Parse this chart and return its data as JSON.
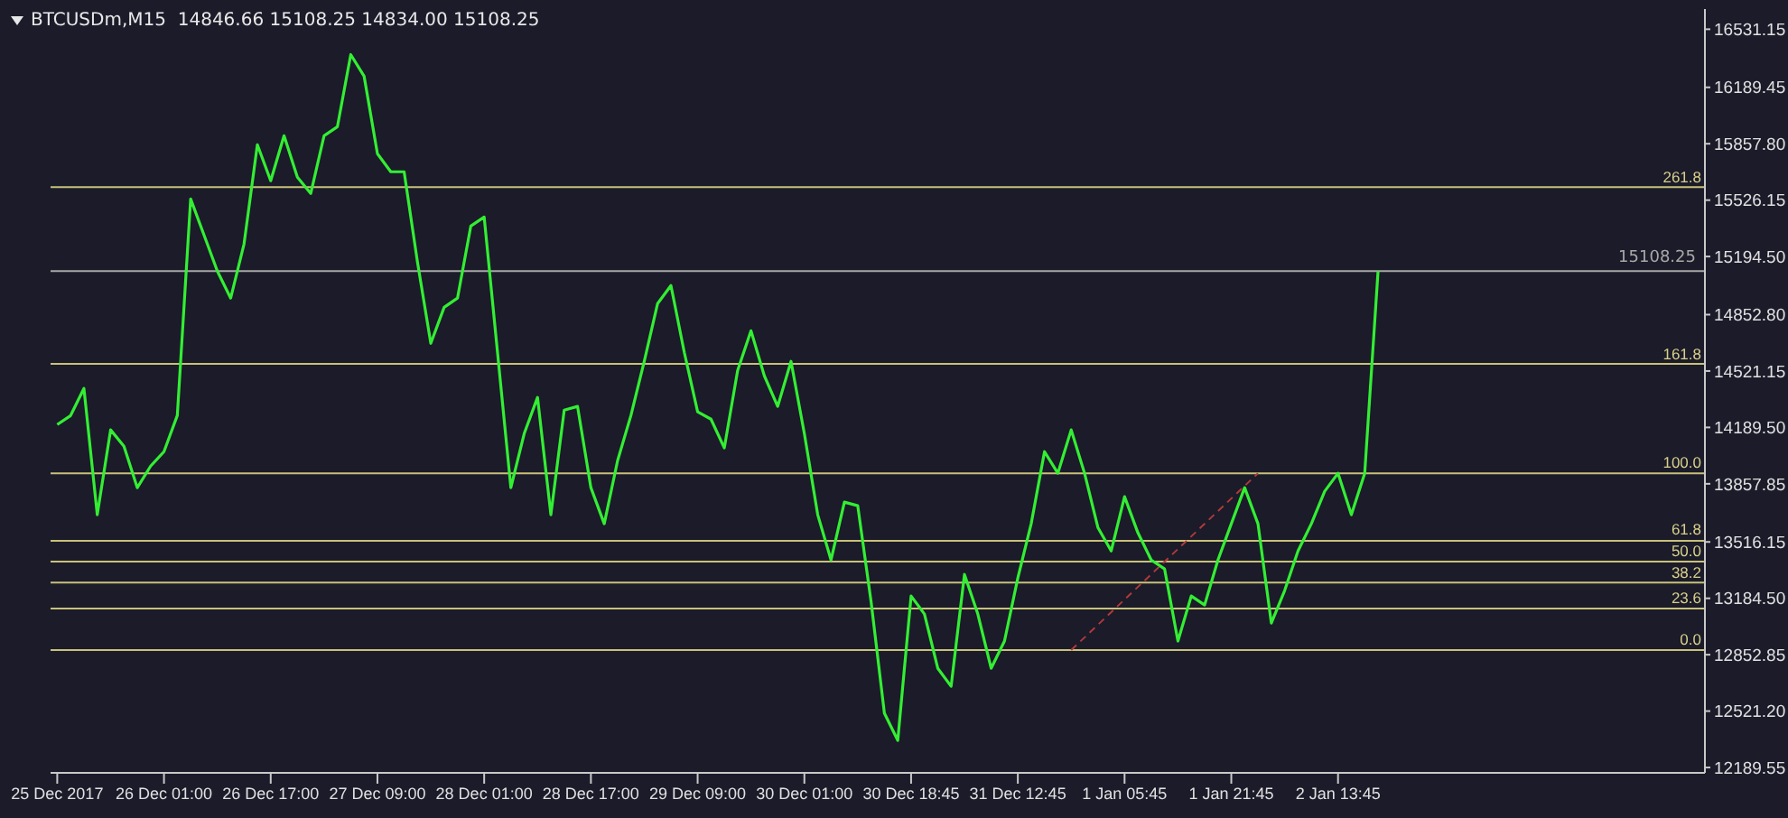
{
  "chart_data": {
    "type": "line",
    "title": "BTCUSDm,M15  14846.66 15108.25 14834.00 15108.25",
    "categories": [
      "25 Dec 2017",
      null,
      null,
      null,
      null,
      null,
      null,
      null,
      "26 Dec 01:00",
      null,
      null,
      null,
      null,
      null,
      null,
      null,
      "26 Dec 17:00",
      null,
      null,
      null,
      null,
      null,
      null,
      null,
      "27 Dec 09:00",
      null,
      null,
      null,
      null,
      null,
      null,
      null,
      "28 Dec 01:00",
      null,
      null,
      null,
      null,
      null,
      null,
      null,
      "28 Dec 17:00",
      null,
      null,
      null,
      null,
      null,
      null,
      null,
      "29 Dec 09:00",
      null,
      null,
      null,
      null,
      null,
      null,
      null,
      "30 Dec 01:00",
      null,
      null,
      null,
      null,
      null,
      null,
      null,
      "30 Dec 18:45",
      null,
      null,
      null,
      null,
      null,
      null,
      null,
      "31 Dec 12:45",
      null,
      null,
      null,
      null,
      null,
      null,
      null,
      "1 Jan 05:45",
      null,
      null,
      null,
      null,
      null,
      null,
      null,
      "1 Jan 21:45",
      null,
      null,
      null,
      null,
      null,
      null,
      null,
      "2 Jan 13:45",
      null,
      null,
      null,
      null,
      null,
      null,
      null,
      null,
      null,
      null,
      null,
      null,
      null,
      null,
      null,
      null,
      null,
      null,
      null,
      null,
      null,
      null,
      null,
      null,
      null,
      null,
      null
    ],
    "series": [
      {
        "color": "#33ee33",
        "values": [
          14206,
          14259,
          14419,
          13676,
          14175,
          14079,
          13835,
          13962,
          14047,
          14260,
          15533,
          15321,
          15109,
          14950,
          15268,
          15852,
          15640,
          15905,
          15661,
          15565,
          15905,
          15958,
          16382,
          16255,
          15799,
          15693,
          15693,
          15162,
          14684,
          14896,
          14950,
          15374,
          15427,
          14631,
          13835,
          14153,
          14366,
          13676,
          14291,
          14313,
          13835,
          13623,
          13994,
          14260,
          14578,
          14918,
          15024,
          14631,
          14281,
          14238,
          14069,
          14525,
          14758,
          14493,
          14313,
          14578,
          14153,
          13676,
          13410,
          13750,
          13729,
          13166,
          12508,
          12349,
          13198,
          13092,
          12773,
          12667,
          13325,
          13092,
          12773,
          12933,
          13304,
          13623,
          14047,
          13920,
          14175,
          13920,
          13601,
          13463,
          13782,
          13570,
          13410,
          13357,
          12933,
          13198,
          13145,
          13410,
          13623,
          13835,
          13623,
          13039,
          13230,
          13463,
          13623,
          13814,
          13920,
          13676,
          13920,
          15108.25,
          null,
          null,
          null,
          null,
          null,
          null,
          null,
          null,
          null,
          null,
          null,
          null,
          null,
          null,
          null,
          null,
          null,
          null,
          null,
          null,
          null,
          null,
          null,
          null
        ]
      },
      {
        "type": "line",
        "color": "#b03a3a",
        "line_style": "dashed",
        "values": [
          null,
          null,
          null,
          null,
          null,
          null,
          null,
          null,
          null,
          null,
          null,
          null,
          null,
          null,
          null,
          null,
          null,
          null,
          null,
          null,
          null,
          null,
          null,
          null,
          null,
          null,
          null,
          null,
          null,
          null,
          null,
          null,
          null,
          null,
          null,
          null,
          null,
          null,
          null,
          null,
          null,
          null,
          null,
          null,
          null,
          null,
          null,
          null,
          null,
          null,
          null,
          null,
          null,
          null,
          null,
          null,
          null,
          null,
          null,
          null,
          null,
          null,
          null,
          null,
          null,
          null,
          null,
          null,
          null,
          null,
          null,
          null,
          null,
          null,
          null,
          null,
          12880,
          null,
          null,
          null,
          null,
          null,
          null,
          null,
          null,
          null,
          null,
          null,
          null,
          null,
          13920,
          null,
          null,
          null,
          null,
          null,
          null,
          null,
          null,
          null,
          null,
          null,
          null,
          null,
          null,
          null,
          null,
          null,
          null,
          null,
          null,
          null,
          null,
          null,
          null,
          null,
          null,
          null,
          null,
          null,
          null,
          null,
          null,
          null
        ]
      }
    ],
    "ylim": [
      12158,
      16650
    ],
    "yticks": [
      {
        "value": 12189.55,
        "label": "12189.55"
      },
      {
        "value": 12521.2,
        "label": "12521.20"
      },
      {
        "value": 12852.85,
        "label": "12852.85"
      },
      {
        "value": 13184.5,
        "label": "13184.50"
      },
      {
        "value": 13516.15,
        "label": "13516.15"
      },
      {
        "value": 13857.85,
        "label": "13857.85"
      },
      {
        "value": 14189.5,
        "label": "14189.50"
      },
      {
        "value": 14521.15,
        "label": "14521.15"
      },
      {
        "value": 14852.8,
        "label": "14852.80"
      },
      {
        "value": 15194.5,
        "label": "15194.50"
      },
      {
        "value": 15526.15,
        "label": "15526.15"
      },
      {
        "value": 15857.8,
        "label": "15857.80"
      },
      {
        "value": 16189.45,
        "label": "16189.45"
      },
      {
        "value": 16531.15,
        "label": "16531.15"
      }
    ],
    "ref_lines": [
      {
        "axis": "y",
        "value": 15603,
        "color": "#c8c27a"
      },
      {
        "axis": "y",
        "value": 14563,
        "color": "#c8c27a"
      },
      {
        "axis": "y",
        "value": 13920,
        "color": "#c8c27a"
      },
      {
        "axis": "y",
        "value": 13523,
        "color": "#c8c27a"
      },
      {
        "axis": "y",
        "value": 13400,
        "color": "#c8c27a"
      },
      {
        "axis": "y",
        "value": 13277,
        "color": "#c8c27a"
      },
      {
        "axis": "y",
        "value": 13125,
        "color": "#c8c27a"
      },
      {
        "axis": "y",
        "value": 12880,
        "color": "#c8c27a"
      },
      {
        "axis": "y",
        "value": 15108.25,
        "label": "15108.25",
        "color": "#a8a8a8"
      }
    ],
    "annotations": [
      {
        "text": "261.8",
        "y": 15603
      },
      {
        "text": "161.8",
        "y": 14563
      },
      {
        "text": "100.0",
        "y": 13920
      },
      {
        "text": "61.8",
        "y": 13523
      },
      {
        "text": "50.0",
        "y": 13400
      },
      {
        "text": "38.2",
        "y": 13277
      },
      {
        "text": "23.6",
        "y": 13125
      },
      {
        "text": "0.0",
        "y": 12880
      }
    ],
    "grid": false
  }
}
